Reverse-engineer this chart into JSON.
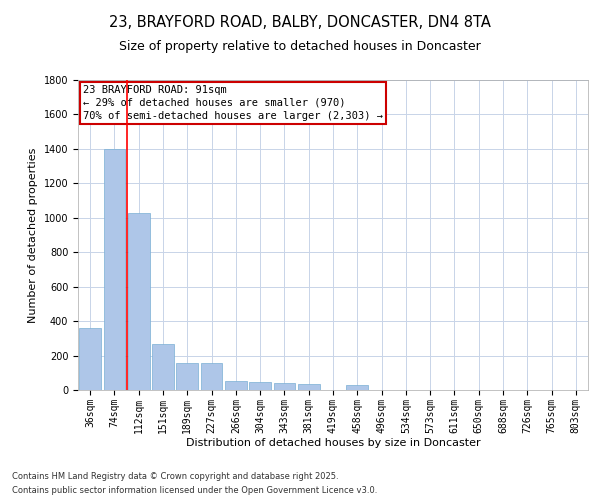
{
  "title_line1": "23, BRAYFORD ROAD, BALBY, DONCASTER, DN4 8TA",
  "title_line2": "Size of property relative to detached houses in Doncaster",
  "xlabel": "Distribution of detached houses by size in Doncaster",
  "ylabel": "Number of detached properties",
  "annotation_line1": "23 BRAYFORD ROAD: 91sqm",
  "annotation_line2": "← 29% of detached houses are smaller (970)",
  "annotation_line3": "70% of semi-detached houses are larger (2,303) →",
  "footnote1": "Contains HM Land Registry data © Crown copyright and database right 2025.",
  "footnote2": "Contains public sector information licensed under the Open Government Licence v3.0.",
  "categories": [
    "36sqm",
    "74sqm",
    "112sqm",
    "151sqm",
    "189sqm",
    "227sqm",
    "266sqm",
    "304sqm",
    "343sqm",
    "381sqm",
    "419sqm",
    "458sqm",
    "496sqm",
    "534sqm",
    "573sqm",
    "611sqm",
    "650sqm",
    "688sqm",
    "726sqm",
    "765sqm",
    "803sqm"
  ],
  "values": [
    360,
    1400,
    1030,
    265,
    155,
    155,
    55,
    45,
    40,
    35,
    0,
    30,
    0,
    0,
    0,
    0,
    0,
    0,
    0,
    0,
    0
  ],
  "bar_color": "#aec6e8",
  "bar_edge_color": "#7aafd4",
  "red_line_x": 1.5,
  "ylim": [
    0,
    1800
  ],
  "yticks": [
    0,
    200,
    400,
    600,
    800,
    1000,
    1200,
    1400,
    1600,
    1800
  ],
  "background_color": "#ffffff",
  "grid_color": "#c8d4e8",
  "annotation_box_color": "#ffffff",
  "annotation_box_edge": "#cc0000",
  "title_fontsize": 10.5,
  "subtitle_fontsize": 9,
  "axis_label_fontsize": 8,
  "tick_fontsize": 7,
  "annotation_fontsize": 7.5
}
